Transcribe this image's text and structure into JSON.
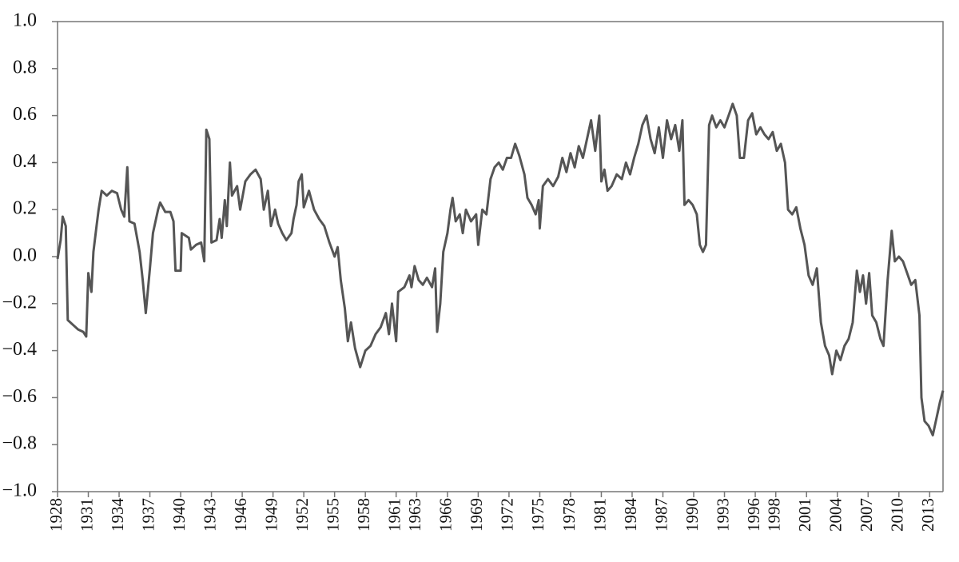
{
  "chart_data": {
    "type": "line",
    "color": "#555555",
    "xlim": [
      1928,
      2014.3
    ],
    "xticks": [
      1928,
      1931,
      1934,
      1937,
      1940,
      1943,
      1946,
      1949,
      1952,
      1955,
      1958,
      1961,
      1963,
      1966,
      1969,
      1972,
      1975,
      1978,
      1981,
      1984,
      1987,
      1990,
      1993,
      1996,
      1998,
      2001,
      2004,
      2007,
      2010,
      2013
    ],
    "ylim": [
      -1,
      1
    ],
    "yticks": [
      {
        "value": -1,
        "label": "−1.0"
      },
      {
        "value": -0.8,
        "label": "−0.8"
      },
      {
        "value": -0.6,
        "label": "−0.6"
      },
      {
        "value": -0.4,
        "label": "−0.4"
      },
      {
        "value": -0.2,
        "label": "−0.2"
      },
      {
        "value": 0,
        "label": "0.0"
      },
      {
        "value": 0.2,
        "label": "0.2"
      },
      {
        "value": 0.4,
        "label": "0.4"
      },
      {
        "value": 0.6,
        "label": "0.6"
      },
      {
        "value": 0.8,
        "label": "0.8"
      },
      {
        "value": 1,
        "label": "1.0"
      }
    ],
    "x": [
      1928.0,
      1928.3,
      1928.5,
      1928.8,
      1929.0,
      1929.5,
      1930.0,
      1930.5,
      1930.8,
      1931.0,
      1931.3,
      1931.5,
      1931.8,
      1932.0,
      1932.3,
      1932.8,
      1933.3,
      1933.8,
      1934.2,
      1934.5,
      1934.8,
      1935.0,
      1935.5,
      1936.0,
      1936.3,
      1936.6,
      1937.0,
      1937.3,
      1937.8,
      1938.0,
      1938.5,
      1939.0,
      1939.3,
      1939.5,
      1940.0,
      1940.1,
      1940.8,
      1941.0,
      1941.5,
      1942.0,
      1942.3,
      1942.5,
      1942.8,
      1943.0,
      1943.5,
      1943.8,
      1944.0,
      1944.3,
      1944.5,
      1944.8,
      1945.0,
      1945.5,
      1945.8,
      1946.3,
      1946.8,
      1947.3,
      1947.8,
      1948.1,
      1948.5,
      1948.8,
      1949.2,
      1949.5,
      1949.9,
      1950.3,
      1950.8,
      1951.0,
      1951.3,
      1951.5,
      1951.8,
      1952.0,
      1952.5,
      1953.0,
      1953.5,
      1954.0,
      1954.5,
      1955.0,
      1955.3,
      1955.6,
      1956.0,
      1956.3,
      1956.6,
      1957.0,
      1957.5,
      1958.0,
      1958.5,
      1959.0,
      1959.5,
      1960.0,
      1960.3,
      1960.6,
      1961.0,
      1961.2,
      1961.8,
      1962.3,
      1962.5,
      1962.8,
      1963.2,
      1963.6,
      1964.0,
      1964.5,
      1964.8,
      1965.0,
      1965.3,
      1965.6,
      1966.0,
      1966.3,
      1966.5,
      1966.8,
      1967.2,
      1967.5,
      1967.8,
      1968.3,
      1968.8,
      1969.0,
      1969.4,
      1969.8,
      1970.2,
      1970.6,
      1971.0,
      1971.4,
      1971.8,
      1972.2,
      1972.6,
      1973.0,
      1973.5,
      1973.8,
      1974.2,
      1974.6,
      1974.9,
      1975.0,
      1975.3,
      1975.8,
      1976.3,
      1976.8,
      1977.2,
      1977.6,
      1978.0,
      1978.4,
      1978.8,
      1979.2,
      1979.6,
      1980.0,
      1980.4,
      1980.8,
      1981.0,
      1981.3,
      1981.6,
      1982.0,
      1982.5,
      1983.0,
      1983.4,
      1983.8,
      1984.2,
      1984.6,
      1985.0,
      1985.4,
      1985.8,
      1986.2,
      1986.6,
      1987.0,
      1987.4,
      1987.8,
      1988.2,
      1988.6,
      1988.9,
      1989.1,
      1989.5,
      1989.9,
      1990.3,
      1990.6,
      1990.9,
      1991.2,
      1991.5,
      1991.8,
      1992.2,
      1992.6,
      1993.0,
      1993.4,
      1993.8,
      1994.2,
      1994.5,
      1994.9,
      1995.3,
      1995.7,
      1996.1,
      1996.5,
      1996.9,
      1997.3,
      1997.7,
      1998.1,
      1998.5,
      1998.9,
      1999.2,
      1999.6,
      2000.0,
      2000.4,
      2000.8,
      2001.2,
      2001.6,
      2002.0,
      2002.4,
      2002.8,
      2003.2,
      2003.5,
      2003.9,
      2004.3,
      2004.7,
      2005.1,
      2005.5,
      2005.9,
      2006.2,
      2006.5,
      2006.8,
      2007.1,
      2007.4,
      2007.8,
      2008.2,
      2008.5,
      2008.9,
      2009.3,
      2009.6,
      2010.0,
      2010.4,
      2010.8,
      2011.2,
      2011.6,
      2012.0,
      2012.2,
      2012.5,
      2012.9,
      2013.3,
      2013.7,
      2014.0,
      2014.3
    ],
    "values": [
      -0.01,
      0.07,
      0.17,
      0.13,
      -0.27,
      -0.29,
      -0.31,
      -0.32,
      -0.34,
      -0.07,
      -0.15,
      0.02,
      0.13,
      0.2,
      0.28,
      0.26,
      0.28,
      0.27,
      0.2,
      0.17,
      0.38,
      0.15,
      0.14,
      0.02,
      -0.1,
      -0.24,
      -0.05,
      0.1,
      0.2,
      0.23,
      0.19,
      0.19,
      0.15,
      -0.06,
      -0.06,
      0.1,
      0.08,
      0.03,
      0.05,
      0.06,
      -0.02,
      0.54,
      0.5,
      0.06,
      0.07,
      0.16,
      0.08,
      0.24,
      0.13,
      0.4,
      0.26,
      0.3,
      0.2,
      0.32,
      0.35,
      0.37,
      0.33,
      0.2,
      0.28,
      0.13,
      0.2,
      0.14,
      0.1,
      0.07,
      0.1,
      0.16,
      0.22,
      0.32,
      0.35,
      0.21,
      0.28,
      0.2,
      0.16,
      0.13,
      0.06,
      0.0,
      0.04,
      -0.1,
      -0.22,
      -0.36,
      -0.28,
      -0.39,
      -0.47,
      -0.4,
      -0.38,
      -0.33,
      -0.3,
      -0.24,
      -0.33,
      -0.2,
      -0.36,
      -0.15,
      -0.13,
      -0.08,
      -0.13,
      -0.04,
      -0.1,
      -0.12,
      -0.09,
      -0.13,
      -0.05,
      -0.32,
      -0.2,
      0.02,
      0.1,
      0.2,
      0.25,
      0.15,
      0.18,
      0.1,
      0.2,
      0.15,
      0.18,
      0.05,
      0.2,
      0.18,
      0.33,
      0.38,
      0.4,
      0.37,
      0.42,
      0.42,
      0.48,
      0.43,
      0.35,
      0.25,
      0.22,
      0.18,
      0.24,
      0.12,
      0.3,
      0.33,
      0.3,
      0.34,
      0.42,
      0.36,
      0.44,
      0.38,
      0.47,
      0.42,
      0.5,
      0.58,
      0.45,
      0.6,
      0.32,
      0.37,
      0.28,
      0.3,
      0.35,
      0.33,
      0.4,
      0.35,
      0.42,
      0.48,
      0.56,
      0.6,
      0.5,
      0.44,
      0.55,
      0.42,
      0.58,
      0.5,
      0.56,
      0.45,
      0.58,
      0.22,
      0.24,
      0.22,
      0.18,
      0.05,
      0.02,
      0.05,
      0.56,
      0.6,
      0.55,
      0.58,
      0.55,
      0.6,
      0.65,
      0.6,
      0.42,
      0.42,
      0.58,
      0.61,
      0.52,
      0.55,
      0.52,
      0.5,
      0.53,
      0.45,
      0.48,
      0.4,
      0.2,
      0.18,
      0.21,
      0.12,
      0.05,
      -0.08,
      -0.12,
      -0.05,
      -0.28,
      -0.38,
      -0.42,
      -0.5,
      -0.4,
      -0.44,
      -0.38,
      -0.35,
      -0.28,
      -0.06,
      -0.15,
      -0.08,
      -0.2,
      -0.07,
      -0.25,
      -0.28,
      -0.35,
      -0.38,
      -0.1,
      0.11,
      -0.02,
      0.0,
      -0.02,
      -0.07,
      -0.12,
      -0.1,
      -0.25,
      -0.6,
      -0.7,
      -0.72,
      -0.76,
      -0.68,
      -0.62,
      -0.57
    ]
  }
}
